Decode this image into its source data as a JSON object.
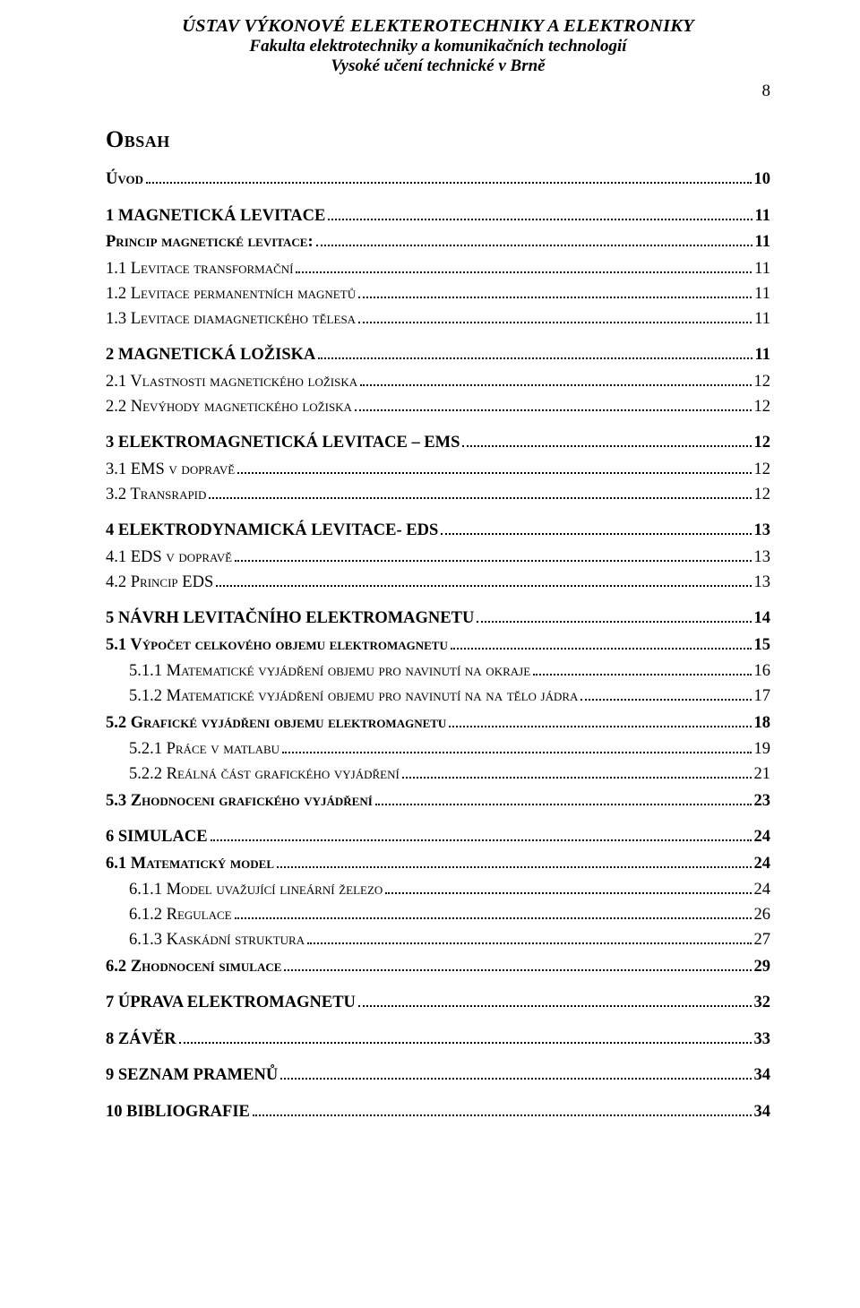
{
  "header": {
    "line1": "ÚSTAV VÝKONOVÉ ELEKTEROTECHNIKY A ELEKTRONIKY",
    "line2": "Fakulta elektrotechniky a komunikačních technologií",
    "line3": "Vysoké učení technické v Brně"
  },
  "page_number": "8",
  "title": "Obsah",
  "toc": [
    {
      "level": 0,
      "bold": true,
      "sc": true,
      "gap": "none",
      "label": "Úvod",
      "page": "10"
    },
    {
      "level": 0,
      "bold": true,
      "sc": false,
      "gap": "lg",
      "label": "1 MAGNETICKÁ LEVITACE",
      "page": "11"
    },
    {
      "level": 0,
      "bold": true,
      "sc": true,
      "gap": "md",
      "label": "Princip magnetické levitace:",
      "page": "11"
    },
    {
      "level": 1,
      "bold": false,
      "sc": true,
      "gap": "md",
      "label": "1.1 Levitace transformační",
      "page": "11"
    },
    {
      "level": 1,
      "bold": false,
      "sc": true,
      "gap": "none",
      "label": "1.2 Levitace permanentních magnetů",
      "page": "11"
    },
    {
      "level": 1,
      "bold": false,
      "sc": true,
      "gap": "none",
      "label": "1.3 Levitace diamagnetického tělesa",
      "page": "11"
    },
    {
      "level": 0,
      "bold": true,
      "sc": false,
      "gap": "lg",
      "label": "2 MAGNETICKÁ LOŽISKA",
      "page": "11"
    },
    {
      "level": 1,
      "bold": false,
      "sc": true,
      "gap": "md",
      "label": "2.1 Vlastnosti magnetického ložiska",
      "page": "12"
    },
    {
      "level": 1,
      "bold": false,
      "sc": true,
      "gap": "none",
      "label": "2.2 Nevýhody magnetického ložiska",
      "page": "12"
    },
    {
      "level": 0,
      "bold": true,
      "sc": false,
      "gap": "lg",
      "label": "3 ELEKTROMAGNETICKÁ LEVITACE – EMS",
      "page": "12"
    },
    {
      "level": 1,
      "bold": false,
      "sc": true,
      "gap": "md",
      "label": "3.1 EMS v dopravě",
      "page": "12"
    },
    {
      "level": 1,
      "bold": false,
      "sc": true,
      "gap": "none",
      "label": "3.2 Transrapid",
      "page": "12"
    },
    {
      "level": 0,
      "bold": true,
      "sc": false,
      "gap": "lg",
      "label": "4 ELEKTRODYNAMICKÁ LEVITACE- EDS",
      "page": "13"
    },
    {
      "level": 1,
      "bold": false,
      "sc": true,
      "gap": "md",
      "label": "4.1 EDS v dopravě",
      "page": "13"
    },
    {
      "level": 1,
      "bold": false,
      "sc": true,
      "gap": "none",
      "label": "4.2 Princip EDS",
      "page": "13"
    },
    {
      "level": 0,
      "bold": true,
      "sc": false,
      "gap": "lg",
      "label": "5 NÁVRH LEVITAČNÍHO ELEKTROMAGNETU",
      "page": "14"
    },
    {
      "level": 1,
      "bold": true,
      "sc": true,
      "gap": "md",
      "label": "5.1 Výpočet celkového objemu elektromagnetu",
      "page": "15"
    },
    {
      "level": 2,
      "bold": false,
      "sc": true,
      "gap": "md",
      "label": "5.1.1 Matematické vyjádření objemu pro navinutí na okraje",
      "page": "16"
    },
    {
      "level": 2,
      "bold": false,
      "sc": true,
      "gap": "none",
      "label": "5.1.2 Matematické vyjádření objemu pro navinutí na na tělo jádra",
      "page": "17"
    },
    {
      "level": 1,
      "bold": true,
      "sc": true,
      "gap": "md",
      "label": "5.2 Grafické vyjádřeni objemu elektromagnetu",
      "page": "18"
    },
    {
      "level": 2,
      "bold": false,
      "sc": true,
      "gap": "md",
      "label": "5.2.1 Práce v matlabu",
      "page": "19"
    },
    {
      "level": 2,
      "bold": false,
      "sc": true,
      "gap": "none",
      "label": "5.2.2 Reálná část grafického vyjádření",
      "page": "21"
    },
    {
      "level": 1,
      "bold": true,
      "sc": true,
      "gap": "md",
      "label": "5.3 Zhodnoceni grafického vyjádření",
      "page": "23"
    },
    {
      "level": 0,
      "bold": true,
      "sc": false,
      "gap": "lg",
      "label": "6 SIMULACE",
      "page": "24"
    },
    {
      "level": 1,
      "bold": true,
      "sc": true,
      "gap": "md",
      "label": "6.1 Matematický model",
      "page": "24"
    },
    {
      "level": 2,
      "bold": false,
      "sc": true,
      "gap": "md",
      "label": "6.1.1 Model uvažující lineární železo",
      "page": "24"
    },
    {
      "level": 2,
      "bold": false,
      "sc": true,
      "gap": "none",
      "label": "6.1.2 Regulace",
      "page": "26"
    },
    {
      "level": 2,
      "bold": false,
      "sc": true,
      "gap": "none",
      "label": "6.1.3 Kaskádní struktura",
      "page": "27"
    },
    {
      "level": 1,
      "bold": true,
      "sc": true,
      "gap": "md",
      "label": "6.2 Zhodnocení simulace",
      "page": "29"
    },
    {
      "level": 0,
      "bold": true,
      "sc": false,
      "gap": "lg",
      "label": "7 ÚPRAVA ELEKTROMAGNETU",
      "page": "32"
    },
    {
      "level": 0,
      "bold": true,
      "sc": false,
      "gap": "lg",
      "label": "8 ZÁVĚR",
      "page": "33"
    },
    {
      "level": 0,
      "bold": true,
      "sc": false,
      "gap": "lg",
      "label": "9 SEZNAM PRAMENŮ",
      "page": "34"
    },
    {
      "level": 0,
      "bold": true,
      "sc": false,
      "gap": "lg",
      "label": "10 BIBLIOGRAFIE",
      "page": "34"
    }
  ]
}
